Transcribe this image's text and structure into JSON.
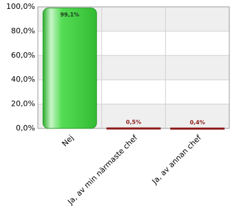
{
  "chart_data": {
    "type": "bar",
    "categories": [
      "Nej",
      "Ja, av min närmaste chef",
      "Ja, av annan chef"
    ],
    "values": [
      99.1,
      0.5,
      0.4
    ],
    "value_labels": [
      "99,1%",
      "0,5%",
      "0,4%"
    ],
    "colors": [
      "#44d044",
      "#8b1a1a",
      "#8b1a1a"
    ],
    "ylim": [
      0,
      100
    ],
    "yticks": [
      {
        "value": 0,
        "label": "0,0%"
      },
      {
        "value": 20,
        "label": "20,0%"
      },
      {
        "value": 40,
        "label": "40,0%"
      },
      {
        "value": 60,
        "label": "60,0%"
      },
      {
        "value": 80,
        "label": "80,0%"
      },
      {
        "value": 100,
        "label": "100,0%"
      }
    ],
    "grid": true
  }
}
